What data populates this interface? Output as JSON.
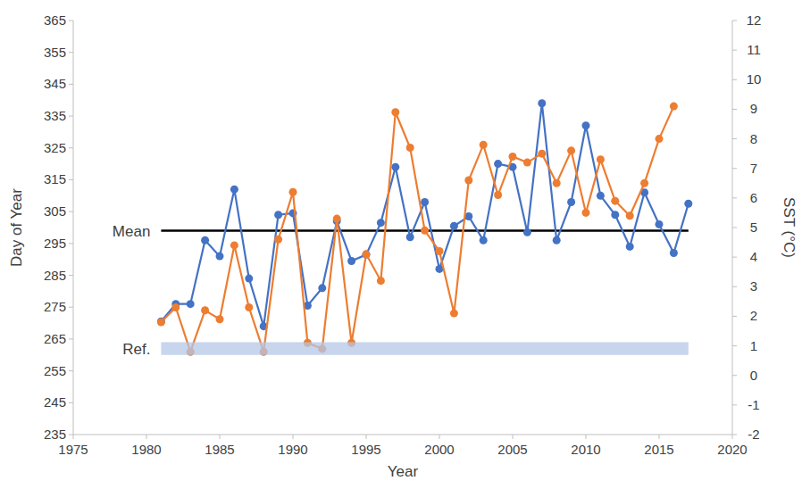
{
  "chart_data": {
    "type": "line",
    "x_label": "Year",
    "y_label": "Day of Year",
    "y2_label": "SST (°C)",
    "x": [
      1981,
      1982,
      1983,
      1984,
      1985,
      1986,
      1987,
      1988,
      1989,
      1990,
      1991,
      1992,
      1993,
      1994,
      1995,
      1996,
      1997,
      1998,
      1999,
      2000,
      2001,
      2002,
      2003,
      2004,
      2005,
      2006,
      2007,
      2008,
      2009,
      2010,
      2011,
      2012,
      2013,
      2014,
      2015,
      2016,
      2017
    ],
    "series": [
      {
        "color": "#4472c4",
        "marker": "circle",
        "line_style": "solid",
        "values": [
          270.5,
          276,
          276,
          296,
          291,
          312,
          284,
          269,
          304,
          304.5,
          275.5,
          281,
          302,
          289.5,
          291.5,
          301.5,
          319,
          297,
          308,
          287,
          300.5,
          303.5,
          296,
          320,
          319,
          298.5,
          339,
          296,
          308,
          332,
          310,
          304,
          294,
          311,
          301,
          292,
          307.5
        ]
      },
      {
        "color": "#ed7d31",
        "marker": "circle",
        "line_style": "solid",
        "axis": "y2",
        "values": [
          1.8,
          2.3,
          0.8,
          2.2,
          1.9,
          4.4,
          2.3,
          0.8,
          4.6,
          6.2,
          1.1,
          0.9,
          5.3,
          1.1,
          4.1,
          3.2,
          8.9,
          7.7,
          4.9,
          4.2,
          2.1,
          6.6,
          7.8,
          6.1,
          7.4,
          7.2,
          7.5,
          6.5,
          7.6,
          5.5,
          7.3,
          5.9,
          5.4,
          6.5,
          8.0,
          9.1,
          null
        ]
      }
    ],
    "mean_line": {
      "label": "Mean",
      "value": 299,
      "x_range": [
        1981,
        2017
      ],
      "color": "#000000"
    },
    "reference_band": {
      "label": "Ref.",
      "range": [
        260,
        264
      ],
      "x_range": [
        1981,
        2017
      ],
      "color": "#b4c7e7"
    },
    "xlim": [
      1975,
      2020
    ],
    "xticks": [
      1975,
      1980,
      1985,
      1990,
      1995,
      2000,
      2005,
      2010,
      2015,
      2020
    ],
    "ylim": [
      235,
      365
    ],
    "yticks": [
      235,
      245,
      255,
      265,
      275,
      285,
      295,
      305,
      315,
      325,
      335,
      345,
      355,
      365
    ],
    "y2lim": [
      -2,
      12
    ],
    "y2ticks": [
      -2,
      -1,
      0,
      1,
      2,
      3,
      4,
      5,
      6,
      7,
      8,
      9,
      10,
      11,
      12
    ],
    "grid": false
  }
}
